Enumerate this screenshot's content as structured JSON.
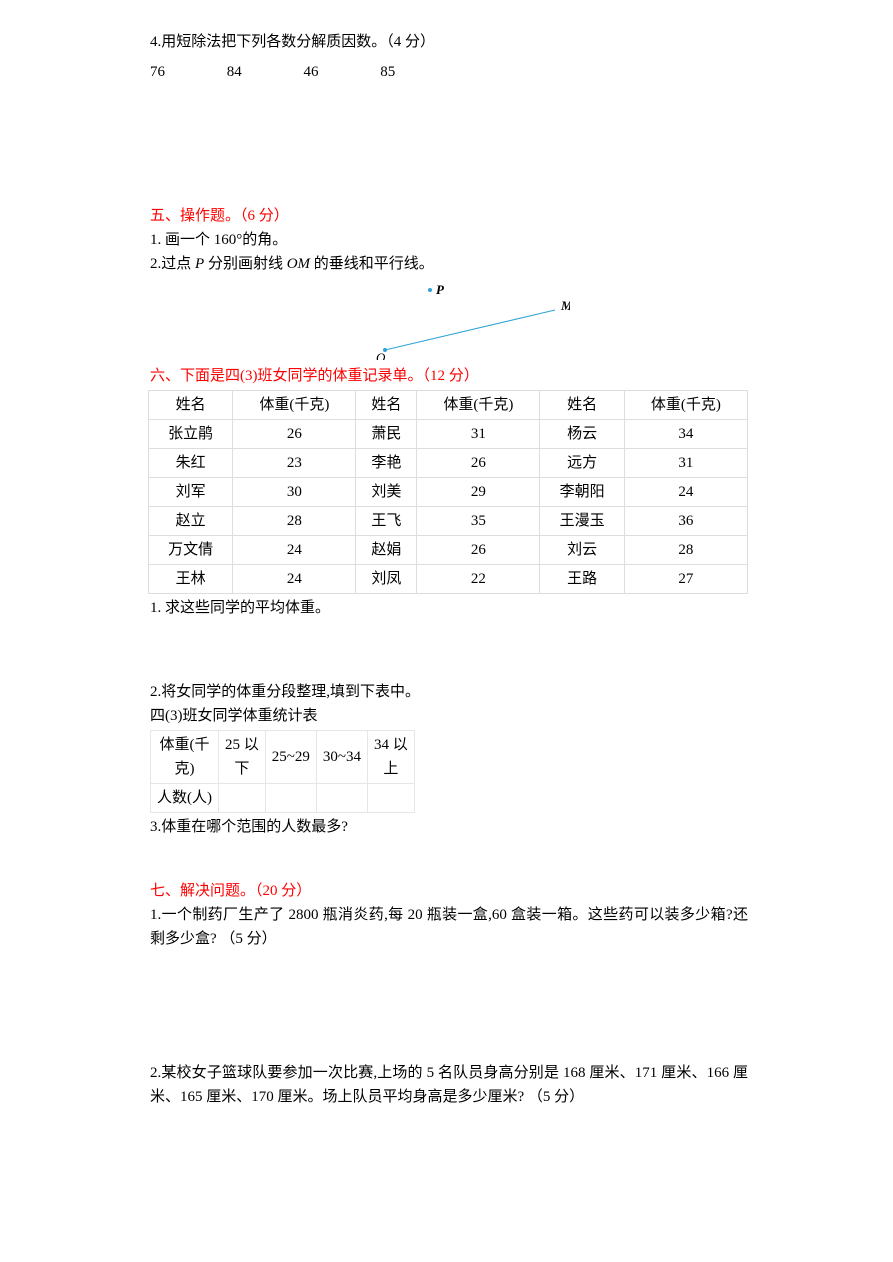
{
  "q4": {
    "title": "4.用短除法把下列各数分解质因数。（4 分）",
    "numbers": [
      "76",
      "84",
      "46",
      "85"
    ]
  },
  "s5": {
    "head": "五、操作题。（6 分）",
    "q1": "1. 画一个 160°的角。",
    "q2_pre": "2.过点 ",
    "q2_P": "P",
    "q2_mid": " 分别画射线 ",
    "q2_OM": "OM",
    "q2_post": " 的垂线和平行线。"
  },
  "geom": {
    "P": "P",
    "O": "O",
    "M": "M",
    "dot_color": "#2fa3d6",
    "line_color": "#2fa3d6"
  },
  "s6": {
    "head": "六、下面是四(3)班女同学的体重记录单。（12 分）",
    "table": {
      "columns": [
        "姓名",
        "体重(千克)",
        "姓名",
        "体重(千克)",
        "姓名",
        "体重(千克)"
      ],
      "rows": [
        [
          "张立鹃",
          "26",
          "萧民",
          "31",
          "杨云",
          "34"
        ],
        [
          "朱红",
          "23",
          "李艳",
          "26",
          "远方",
          "31"
        ],
        [
          "刘军",
          "30",
          "刘美",
          "29",
          "李朝阳",
          "24"
        ],
        [
          "赵立",
          "28",
          "王飞",
          "35",
          "王漫玉",
          "36"
        ],
        [
          "万文倩",
          "24",
          "赵娟",
          "26",
          "刘云",
          "28"
        ],
        [
          "王林",
          "24",
          "刘凤",
          "22",
          "王路",
          "27"
        ]
      ],
      "border_color": "#dddddd"
    },
    "q1": "1. 求这些同学的平均体重。",
    "q2": "2.将女同学的体重分段整理,填到下表中。",
    "subtitle": "四(3)班女同学体重统计表",
    "table2": {
      "row1": [
        "体重(千克)",
        "25 以下",
        "25~29",
        "30~34",
        "34 以上"
      ],
      "row2": [
        "人数(人)",
        "",
        "",
        "",
        ""
      ]
    },
    "q3": "3.体重在哪个范围的人数最多?"
  },
  "s7": {
    "head": "七、解决问题。（20 分）",
    "q1": "1.一个制药厂生产了 2800 瓶消炎药,每 20 瓶装一盒,60 盒装一箱。这些药可以装多少箱?还剩多少盒? （5 分）",
    "q2": "2.某校女子篮球队要参加一次比赛,上场的 5 名队员身高分别是 168 厘米、171 厘米、166 厘米、165 厘米、170 厘米。场上队员平均身高是多少厘米? （5 分）"
  }
}
